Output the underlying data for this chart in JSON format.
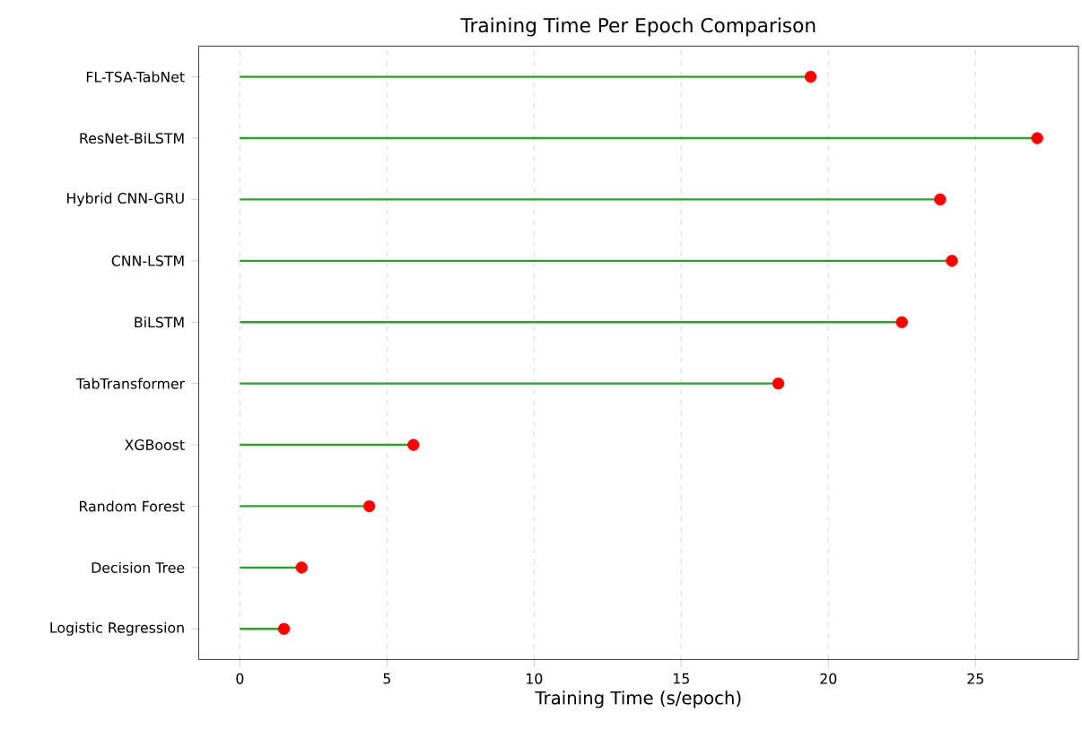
{
  "chart_data": {
    "type": "lollipop",
    "orientation": "horizontal",
    "title": "Training Time Per Epoch Comparison",
    "xlabel": "Training Time (s/epoch)",
    "categories": [
      "FL-TSA-TabNet",
      "ResNet-BiLSTM",
      "Hybrid CNN-GRU",
      "CNN-LSTM",
      "BiLSTM",
      "TabTransformer",
      "XGBoost",
      "Random Forest",
      "Decision Tree",
      "Logistic Regression"
    ],
    "color": "#2ca02c",
    "series": [
      {
        "color": "#ff0000",
        "values": [
          19.4,
          27.1,
          23.8,
          24.2,
          22.5,
          18.3,
          5.9,
          4.4,
          2.1,
          1.5
        ]
      }
    ],
    "xlim": [
      -1.4,
      28.5
    ],
    "xticks": [
      0,
      5,
      10,
      15,
      20,
      25
    ],
    "grid": "x",
    "marker": "circle"
  }
}
